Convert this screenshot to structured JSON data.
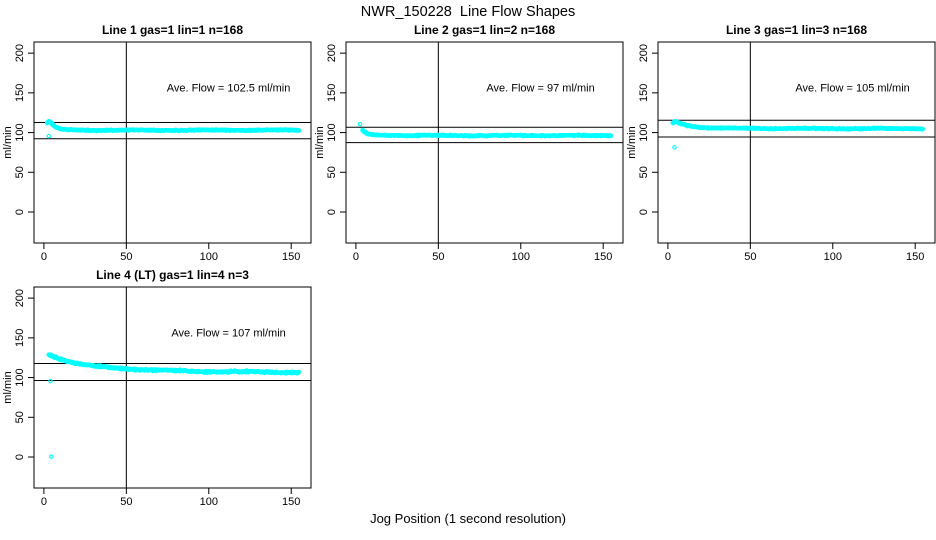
{
  "figure": {
    "title": "NWR_150228  Line Flow Shapes",
    "xlabel": "Jog Position (1 second resolution)",
    "point_color": "#00ffff",
    "line_color": "#000000",
    "background": "#ffffff"
  },
  "chart_data": [
    {
      "type": "scatter",
      "name": "panel-line-1",
      "title": "Line 1 gas=1 lin=1 n=168",
      "ylabel": "ml/min",
      "annotation": "Ave. Flow =  102.5  ml/min",
      "ave_flow": 102.5,
      "xticks": [
        0,
        50,
        100,
        150
      ],
      "yticks": [
        0,
        50,
        100,
        150,
        200
      ],
      "xlim": [
        -6,
        162
      ],
      "ylim": [
        -39,
        214
      ],
      "hlines": [
        112.75,
        92.25
      ],
      "vline": 50,
      "curve_anchors": [
        [
          2,
          112
        ],
        [
          3,
          114
        ],
        [
          4,
          113
        ],
        [
          5,
          110.5
        ],
        [
          7,
          107
        ],
        [
          9,
          105
        ],
        [
          12,
          103.8
        ],
        [
          18,
          103.2
        ],
        [
          30,
          103
        ],
        [
          70,
          103
        ],
        [
          110,
          103.1
        ],
        [
          155,
          103
        ]
      ],
      "x_range": [
        2,
        155
      ],
      "jitter": 0.8,
      "wiggle": 0.3,
      "outliers": [
        [
          3,
          95.5
        ]
      ],
      "seed": 11
    },
    {
      "type": "scatter",
      "name": "panel-line-2",
      "title": "Line 2 gas=1 lin=2 n=168",
      "ylabel": "ml/min",
      "annotation": "Ave. Flow =  97  ml/min",
      "ave_flow": 97,
      "xticks": [
        0,
        50,
        100,
        150
      ],
      "yticks": [
        0,
        50,
        100,
        150,
        200
      ],
      "xlim": [
        -6,
        162
      ],
      "ylim": [
        -39,
        214
      ],
      "hlines": [
        106.7,
        87.3
      ],
      "vline": 50,
      "curve_anchors": [
        [
          4,
          103
        ],
        [
          5,
          101
        ],
        [
          7,
          98.5
        ],
        [
          10,
          97.3
        ],
        [
          15,
          96.8
        ],
        [
          30,
          96.4
        ],
        [
          70,
          96.2
        ],
        [
          110,
          96.3
        ],
        [
          155,
          96.2
        ]
      ],
      "x_range": [
        4,
        155
      ],
      "jitter": 0.8,
      "wiggle": 0.3,
      "outliers": [
        [
          2.5,
          110.5
        ]
      ],
      "seed": 22
    },
    {
      "type": "scatter",
      "name": "panel-line-3",
      "title": "Line 3 gas=1 lin=3 n=168",
      "ylabel": "ml/min",
      "annotation": "Ave. Flow =  105  ml/min",
      "ave_flow": 105,
      "xticks": [
        0,
        50,
        100,
        150
      ],
      "yticks": [
        0,
        50,
        100,
        150,
        200
      ],
      "xlim": [
        -6,
        162
      ],
      "ylim": [
        -39,
        214
      ],
      "hlines": [
        115.5,
        94.5
      ],
      "vline": 50,
      "curve_anchors": [
        [
          3,
          112
        ],
        [
          4.5,
          114
        ],
        [
          6,
          112.5
        ],
        [
          9,
          110.5
        ],
        [
          13,
          108.5
        ],
        [
          18,
          107
        ],
        [
          25,
          106
        ],
        [
          40,
          105.4
        ],
        [
          80,
          105
        ],
        [
          155,
          105
        ]
      ],
      "x_range": [
        3,
        155
      ],
      "jitter": 0.8,
      "wiggle": 0.3,
      "outliers": [
        [
          4,
          81.5
        ]
      ],
      "seed": 33
    },
    {
      "type": "scatter",
      "name": "panel-line-4",
      "title": "Line 4 (LT) gas=1 lin=4 n=3",
      "ylabel": "ml/min",
      "annotation": "Ave. Flow =  107  ml/min",
      "ave_flow": 107,
      "xticks": [
        0,
        50,
        100,
        150
      ],
      "yticks": [
        0,
        50,
        100,
        150,
        200
      ],
      "xlim": [
        -6,
        162
      ],
      "ylim": [
        -39,
        214
      ],
      "hlines": [
        117.7,
        96.3
      ],
      "vline": 50,
      "curve_anchors": [
        [
          3,
          129
        ],
        [
          6,
          126.5
        ],
        [
          10,
          123.5
        ],
        [
          15,
          120.5
        ],
        [
          22,
          117
        ],
        [
          30,
          114.5
        ],
        [
          40,
          112.5
        ],
        [
          50,
          111
        ],
        [
          65,
          109.5
        ],
        [
          85,
          108.2
        ],
        [
          110,
          107.4
        ],
        [
          135,
          107
        ],
        [
          155,
          106.6
        ]
      ],
      "x_range": [
        3,
        155
      ],
      "jitter": 1.3,
      "wiggle": 0.5,
      "outliers": [
        [
          4,
          95.5
        ],
        [
          4.5,
          0.5
        ]
      ],
      "seed": 44
    }
  ]
}
